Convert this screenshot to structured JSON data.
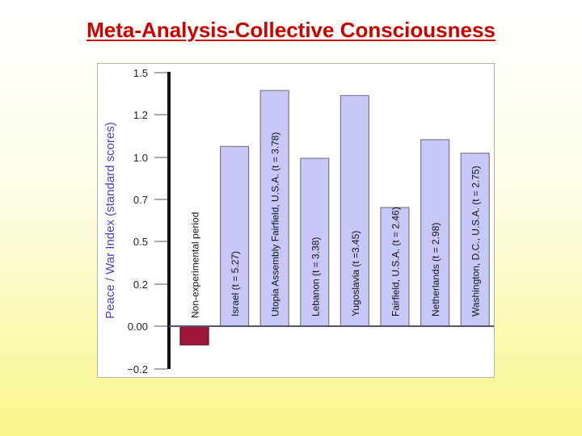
{
  "slide": {
    "title": "Meta-Analysis-Collective Consciousness"
  },
  "chart_data": {
    "type": "bar",
    "title": "",
    "xlabel": "",
    "ylabel": "Peace / War Index (standard scores)",
    "y_tick_labels": [
      "1.5",
      "1.2",
      "1.0",
      "0.7",
      "0.5",
      "0.2",
      "0.00",
      "−0.2"
    ],
    "ylim": [
      -0.2,
      1.5
    ],
    "categories": [
      "Non-experimental period",
      "Israel (t = 5.27)",
      "Utopia Assembly Fairfield, U.S.A. (t = 3.78)",
      "Lebanon (t = 3.38)",
      "Yugoslavia (t =3.45)",
      "Fairfield, U.S.A. (t = 2.46)",
      "Netherlands (t = 2.98)",
      "Washington, D.C., U.S.A. (t = 2.75)"
    ],
    "values": [
      -0.11,
      1.06,
      1.39,
      0.99,
      1.36,
      0.7,
      1.1,
      1.02
    ],
    "colors": {
      "negative_bar": "#a0153a",
      "positive_bar": "#c8c8f8",
      "bar_outline": "#7a7a8a",
      "axis_label": "#4a3ec6",
      "text": "#111111",
      "baseline": "#555566"
    },
    "grid": false,
    "legend": "none"
  }
}
